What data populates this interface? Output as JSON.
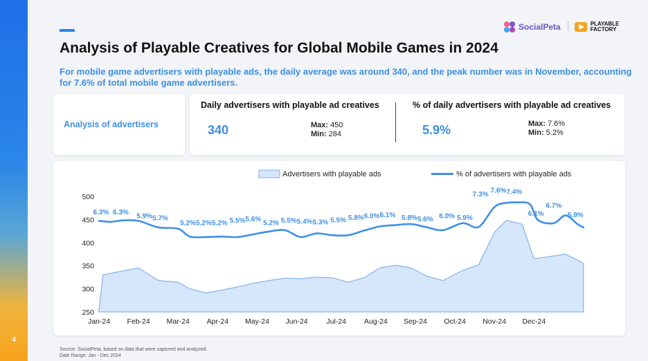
{
  "page": {
    "number": "4",
    "title": "Analysis of Playable Creatives for Global Mobile Games in 2024",
    "subtitle": "For mobile game advertisers with playable ads, the daily average was around 340, and the peak number was in November, accounting for 7.6% of total mobile game advertisers.",
    "footer_source": "Source: SocialPeta, based on data that were captured and analyzed.",
    "footer_range": "Date Range: Jan - Dec 2024"
  },
  "logos": {
    "socialpeta": "SocialPeta",
    "playable_line1": "PLAYABLE",
    "playable_line2": "FACTORY"
  },
  "section_label": "Analysis of advertisers",
  "stats": {
    "daily": {
      "heading": "Daily advertisers with playable ad creatives",
      "value": "340",
      "max_label": "Max:",
      "max_value": "450",
      "min_label": "Min:",
      "min_value": "284"
    },
    "percent": {
      "heading": "% of daily advertisers with playable ad creatives",
      "value": "5.9%",
      "max_label": "Max:",
      "max_value": "7.6%",
      "min_label": "Min:",
      "min_value": "5.2%"
    }
  },
  "colors": {
    "accent": "#2a86e8",
    "line": "#3d8fe6",
    "area_fill": "#d6e6fb",
    "area_stroke": "#7fb3ee"
  },
  "chart_data": {
    "type": "area",
    "title": "",
    "x_ticks": [
      "Jan-24",
      "Feb-24",
      "Mar-24",
      "Apr-24",
      "May-24",
      "Jun-24",
      "Jul-24",
      "Aug-24",
      "Sep-24",
      "Oct-24",
      "Nov-24",
      "Dec-24"
    ],
    "y_ticks": [
      250,
      300,
      350,
      400,
      450,
      500
    ],
    "ylim": [
      250,
      500
    ],
    "x_range": [
      0,
      12.5
    ],
    "grid": false,
    "legend_position": "top-center",
    "legend": [
      "Advertisers with playable ads",
      "% of advertisers with playable ads"
    ],
    "series": [
      {
        "name": "Advertisers with playable ads",
        "type": "area",
        "x": [
          0,
          0.1,
          0.5,
          1.0,
          1.5,
          2.0,
          2.3,
          2.7,
          3.1,
          3.5,
          3.9,
          4.3,
          4.7,
          5.1,
          5.5,
          5.9,
          6.3,
          6.7,
          7.1,
          7.5,
          7.9,
          8.3,
          8.7,
          9.2,
          9.6,
          10.0,
          10.3,
          10.7,
          11.0,
          11.4,
          11.8,
          12.1,
          12.25,
          12.25
        ],
        "values": [
          255,
          330,
          337,
          345,
          318,
          314,
          300,
          291,
          297,
          304,
          312,
          318,
          323,
          322,
          325,
          324,
          314,
          324,
          345,
          351,
          345,
          327,
          318,
          340,
          352,
          422,
          448,
          440,
          365,
          370,
          375,
          362,
          355,
          250
        ]
      },
      {
        "name": "% of advertisers with playable ads",
        "type": "line",
        "x": [
          0,
          0.3,
          0.6,
          1.0,
          1.5,
          2.0,
          2.3,
          2.7,
          3.1,
          3.5,
          3.9,
          4.3,
          4.7,
          5.1,
          5.5,
          5.9,
          6.3,
          6.7,
          7.1,
          7.5,
          7.9,
          8.3,
          8.7,
          9.2,
          9.6,
          10.0,
          10.3,
          10.6,
          10.9,
          11.1,
          11.5,
          11.8,
          12.1,
          12.25
        ],
        "values": [
          447,
          445,
          448,
          447,
          433,
          430,
          413,
          412,
          413,
          412,
          418,
          424,
          427,
          412,
          420,
          416,
          416,
          426,
          435,
          438,
          440,
          433,
          427,
          442,
          434,
          477,
          486,
          487,
          483,
          449,
          442,
          459,
          440,
          433
        ]
      }
    ],
    "annotations": [
      {
        "label": "6.3%",
        "x": 0.05,
        "y": 461
      },
      {
        "label": "6.3%",
        "x": 0.55,
        "y": 461
      },
      {
        "label": "5.9%",
        "x": 1.15,
        "y": 453
      },
      {
        "label": "5.7%",
        "x": 1.55,
        "y": 448
      },
      {
        "label": "5.2%",
        "x": 2.25,
        "y": 438
      },
      {
        "label": "5.2%",
        "x": 2.65,
        "y": 438
      },
      {
        "label": "5.2%",
        "x": 3.05,
        "y": 438
      },
      {
        "label": "5.5%",
        "x": 3.5,
        "y": 443
      },
      {
        "label": "5.6%",
        "x": 3.9,
        "y": 446
      },
      {
        "label": "5.2%",
        "x": 4.35,
        "y": 438
      },
      {
        "label": "5.5%",
        "x": 4.8,
        "y": 443
      },
      {
        "label": "5.4%",
        "x": 5.2,
        "y": 441
      },
      {
        "label": "5.3%",
        "x": 5.6,
        "y": 439
      },
      {
        "label": "5.5%",
        "x": 6.05,
        "y": 444
      },
      {
        "label": "5.8%",
        "x": 6.5,
        "y": 449
      },
      {
        "label": "6.0%",
        "x": 6.9,
        "y": 453
      },
      {
        "label": "6.1%",
        "x": 7.3,
        "y": 455
      },
      {
        "label": "5.8%",
        "x": 7.85,
        "y": 449
      },
      {
        "label": "5.6%",
        "x": 8.25,
        "y": 446
      },
      {
        "label": "6.0%",
        "x": 8.8,
        "y": 453
      },
      {
        "label": "5.9%",
        "x": 9.25,
        "y": 449
      },
      {
        "label": "7.3%",
        "x": 9.65,
        "y": 500
      },
      {
        "label": "7.6%",
        "x": 10.1,
        "y": 508
      },
      {
        "label": "7.4%",
        "x": 10.5,
        "y": 505
      },
      {
        "label": "6.1%",
        "x": 11.05,
        "y": 458
      },
      {
        "label": "6.7%",
        "x": 11.5,
        "y": 475
      },
      {
        "label": "5.9%",
        "x": 12.05,
        "y": 455
      }
    ]
  }
}
